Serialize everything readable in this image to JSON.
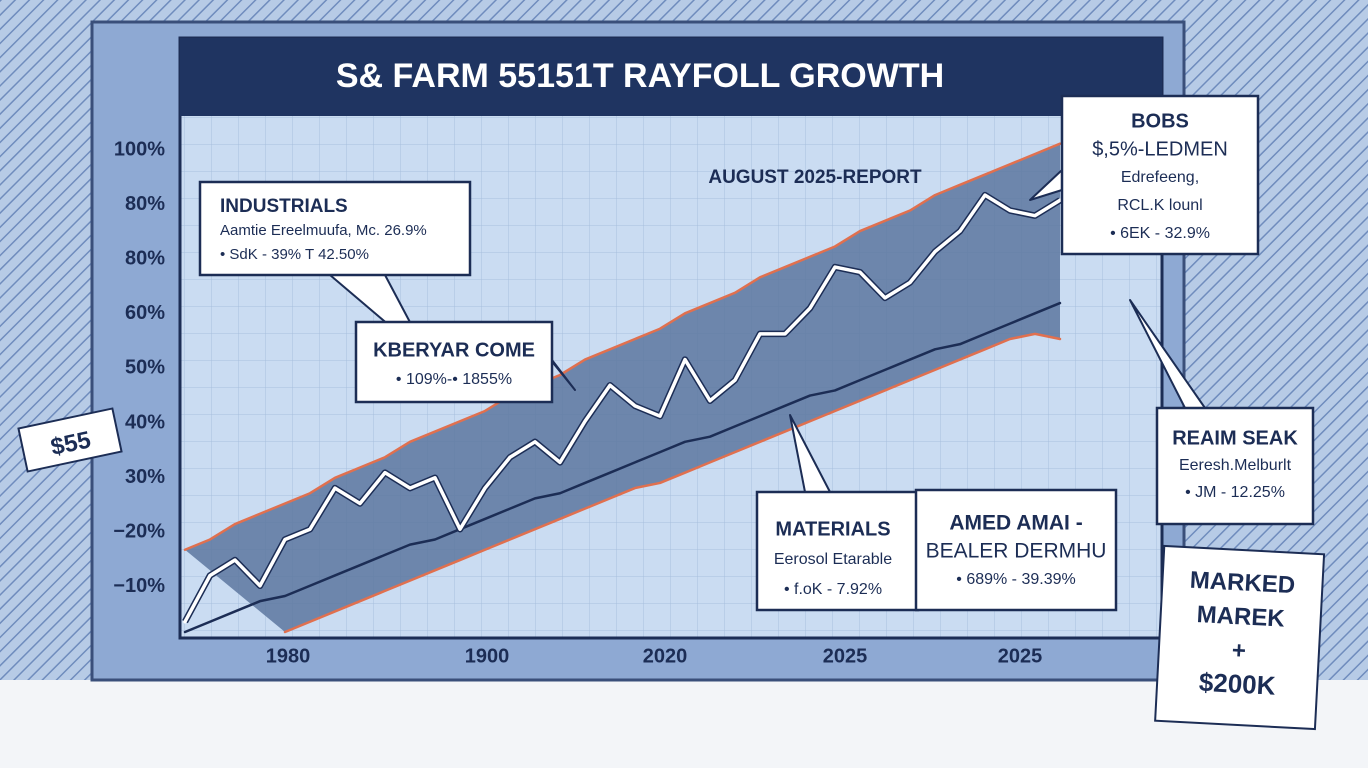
{
  "chart_data": {
    "type": "line",
    "title": "S& FARM 55151T RAYFOLL GROWTH",
    "subtitle": "AUGUST 2025-REPORT",
    "y_axis_labels": [
      "100%",
      "80%",
      "80%",
      "60%",
      "50%",
      "40%",
      "30%",
      "−20%",
      "−10%"
    ],
    "x_axis_labels": [
      "1980",
      "1900",
      "2020",
      "2025",
      "2025"
    ],
    "x": [
      0,
      1,
      2,
      3,
      4,
      5,
      6,
      7,
      8,
      9,
      10,
      11,
      12,
      13,
      14,
      15,
      16,
      17,
      18,
      19,
      20,
      21,
      22,
      23,
      24,
      25,
      26,
      27,
      28,
      29,
      30,
      31,
      32,
      33,
      34,
      35
    ],
    "xlim": [
      0,
      35
    ],
    "ylim": [
      0,
      100
    ],
    "grid": true,
    "series": [
      {
        "color": "#ffffff",
        "values": [
          2,
          11,
          14,
          9,
          18,
          20,
          28,
          25,
          31,
          28,
          30,
          20,
          28,
          34,
          37,
          33,
          41,
          48,
          44,
          42,
          53,
          45,
          49,
          58,
          58,
          63,
          71,
          70,
          65,
          68,
          74,
          78,
          85,
          82,
          81,
          84
        ]
      },
      {
        "color": "#1c2d55",
        "values": [
          0,
          2,
          4,
          6,
          7,
          9,
          11,
          13,
          15,
          17,
          18,
          20,
          22,
          24,
          26,
          27,
          29,
          31,
          33,
          35,
          37,
          38,
          40,
          42,
          44,
          46,
          47,
          49,
          51,
          53,
          55,
          56,
          58,
          60,
          62,
          64
        ]
      },
      {
        "color": "#e0704f",
        "values": [
          16,
          18,
          21,
          23,
          25,
          27,
          30,
          32,
          34,
          37,
          39,
          41,
          43,
          46,
          48,
          50,
          53,
          55,
          57,
          59,
          62,
          64,
          66,
          69,
          71,
          73,
          75,
          78,
          80,
          82,
          85,
          87,
          89,
          91,
          93,
          95
        ]
      },
      {
        "color": "#e0704f",
        "values": [
          null,
          null,
          null,
          null,
          0,
          2,
          4,
          6,
          8,
          10,
          12,
          14,
          16,
          18,
          20,
          22,
          24,
          26,
          28,
          29,
          31,
          33,
          35,
          37,
          39,
          41,
          43,
          45,
          47,
          49,
          51,
          53,
          55,
          57,
          58,
          57
        ]
      }
    ],
    "annotations": [
      {
        "lines": [
          "INDUSTRIALS",
          "Aamtie Ereelmuufa, Mc. 26.9%",
          "• SdK - 39%     T 42.50%"
        ]
      },
      {
        "lines": [
          "KBERYAR COME",
          "• 109%-• 1855%"
        ]
      },
      {
        "lines": [
          "BOBS",
          "$,5%-LEDMEN",
          "Edrefeeng,",
          "RCL.K lounl",
          "• 6EK - 32.9%"
        ]
      },
      {
        "lines": [
          "REAIM SEAK",
          "Eeresh.Melburlt",
          "• JM - 12.25%"
        ]
      },
      {
        "lines": [
          "MATERIALS",
          "Eerosol Etarable",
          "• f.oK - 7.92%"
        ]
      },
      {
        "lines": [
          "AMED AMAI -",
          "BEALER DERMHU",
          "• 689% - 39.39%"
        ]
      },
      {
        "lines": [
          "MARKED",
          "MAREK",
          "+",
          "$200K"
        ]
      },
      {
        "lines": [
          "$55"
        ]
      }
    ]
  }
}
